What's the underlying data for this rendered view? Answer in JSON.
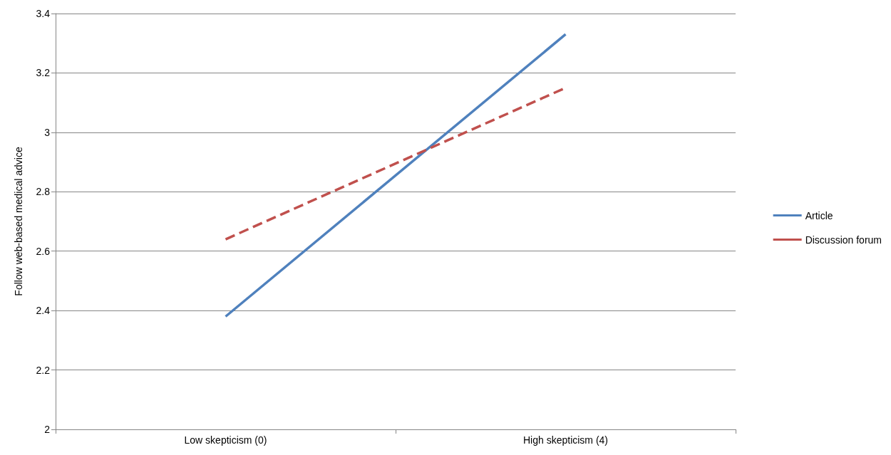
{
  "chart_data": {
    "type": "line",
    "ylabel": "Follow web-based medical advice",
    "categories": [
      "Low skepticism (0)",
      "High skepticism (4)"
    ],
    "series": [
      {
        "name": "Article",
        "color": "#4f81bd",
        "values": [
          2.38,
          3.33
        ],
        "line_style": "solid"
      },
      {
        "name": "Discussion forum",
        "color": "#c0504d",
        "values": [
          2.64,
          3.15
        ],
        "line_style": "dashed"
      }
    ],
    "ylim": [
      2,
      3.4
    ],
    "yticks": [
      2,
      2.2,
      2.4,
      2.6,
      2.8,
      3,
      3.2,
      3.4
    ],
    "grid": "y",
    "legend": "right",
    "marker": "none"
  }
}
